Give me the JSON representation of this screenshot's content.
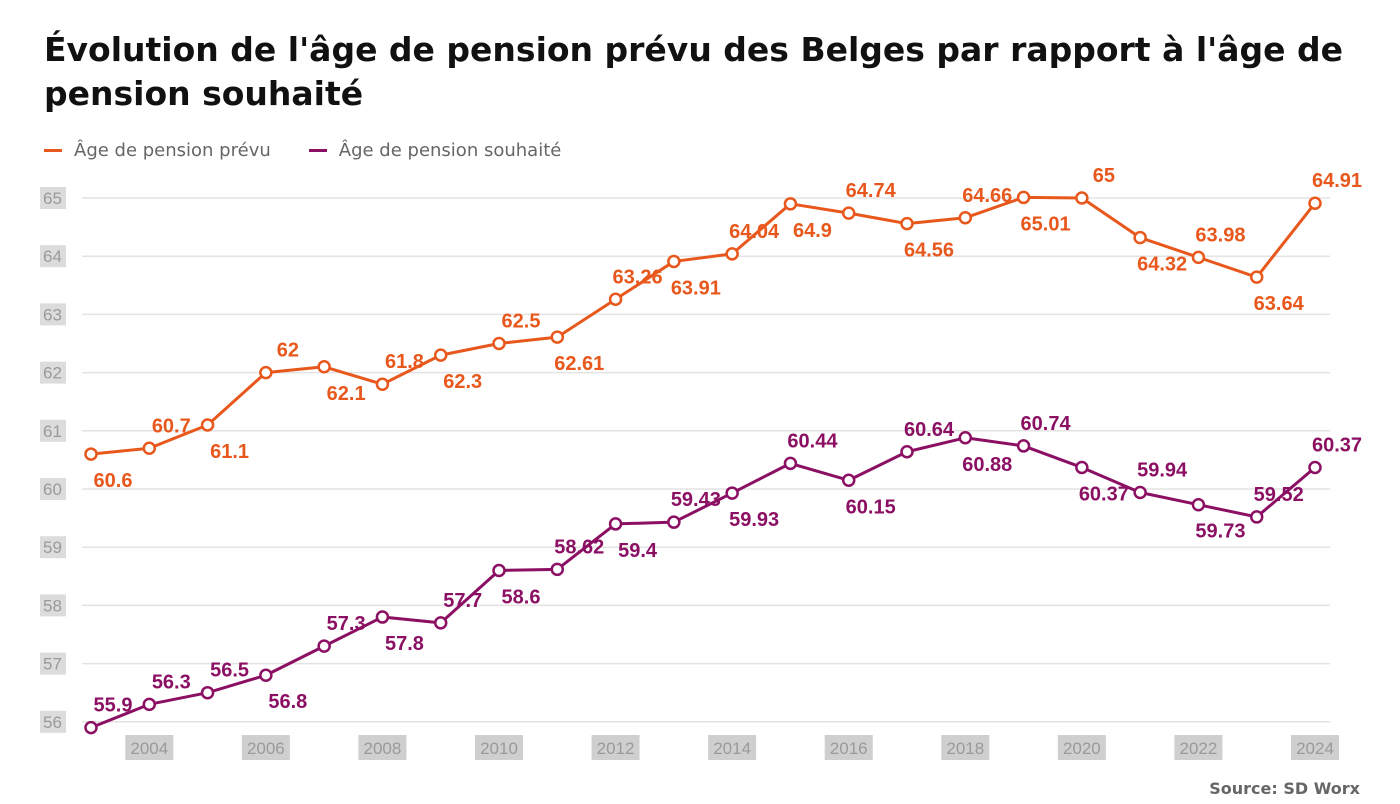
{
  "chart_data": {
    "type": "line",
    "title": "Évolution de l'âge de pension prévu des Belges par rapport à l'âge de pension souhaité",
    "source": "Source: SD Worx",
    "xlabel": "",
    "ylabel": "",
    "x": [
      2003,
      2004,
      2005,
      2006,
      2007,
      2008,
      2009,
      2010,
      2011,
      2012,
      2013,
      2014,
      2015,
      2016,
      2017,
      2018,
      2019,
      2020,
      2021,
      2022,
      2023,
      2024
    ],
    "x_ticks": [
      "2004",
      "2006",
      "2008",
      "2010",
      "2012",
      "2014",
      "2016",
      "2018",
      "2020",
      "2022",
      "2024"
    ],
    "y_ticks": [
      "56",
      "57",
      "58",
      "59",
      "60",
      "61",
      "62",
      "63",
      "64",
      "65"
    ],
    "ylim": [
      55.9,
      65.05
    ],
    "grid": true,
    "legend_position": "top-left",
    "series": [
      {
        "name": "Âge de pension prévu",
        "color": "#e8581c",
        "values": [
          60.6,
          60.7,
          61.1,
          62,
          62.1,
          61.8,
          62.3,
          62.5,
          62.61,
          63.26,
          63.91,
          64.04,
          64.9,
          64.74,
          64.56,
          64.66,
          65.01,
          65,
          64.32,
          63.98,
          63.64,
          64.91
        ],
        "labels": [
          "60.6",
          "60.7",
          "61.1",
          "62",
          "62.1",
          "61.8",
          "62.3",
          "62.5",
          "62.61",
          "63.26",
          "63.91",
          "64.04",
          "64.9",
          "64.74",
          "64.56",
          "64.66",
          "65.01",
          "65",
          "64.32",
          "63.98",
          "63.64",
          "64.91"
        ],
        "label_pos": [
          "below",
          "above",
          "below",
          "above",
          "below",
          "above",
          "below",
          "above",
          "below",
          "above",
          "below",
          "above",
          "below",
          "above",
          "below",
          "above",
          "below",
          "above",
          "below",
          "above",
          "below",
          "above"
        ]
      },
      {
        "name": "Âge de pension souhaité",
        "color": "#8b1063",
        "values": [
          55.9,
          56.3,
          56.5,
          56.8,
          57.3,
          57.8,
          57.7,
          58.6,
          58.62,
          59.4,
          59.43,
          59.93,
          60.44,
          60.15,
          60.64,
          60.88,
          60.74,
          60.37,
          59.94,
          59.73,
          59.52,
          60.37
        ],
        "labels": [
          "55.9",
          "56.3",
          "56.5",
          "56.8",
          "57.3",
          "57.8",
          "57.7",
          "58.6",
          "58.62",
          "59.4",
          "59.43",
          "59.93",
          "60.44",
          "60.15",
          "60.64",
          "60.88",
          "60.74",
          "60.37",
          "59.94",
          "59.73",
          "59.52",
          "60.37"
        ],
        "label_pos": [
          "above",
          "above",
          "above",
          "below",
          "above",
          "below",
          "above",
          "below",
          "above",
          "below",
          "above",
          "below",
          "above",
          "below",
          "above",
          "below",
          "above",
          "below",
          "above",
          "below",
          "above",
          "above"
        ]
      }
    ]
  }
}
